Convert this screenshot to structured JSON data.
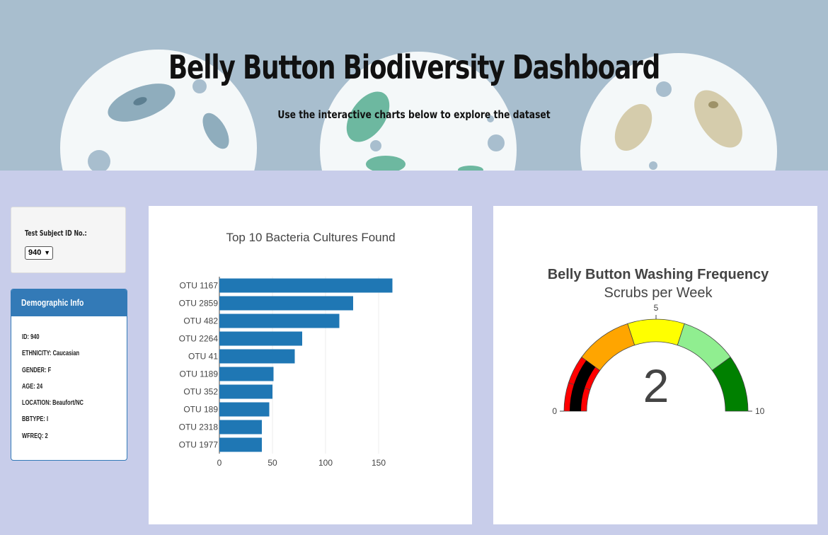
{
  "header": {
    "title": "Belly Button Biodiversity Dashboard",
    "subtitle": "Use the interactive charts below to explore the dataset"
  },
  "selector": {
    "label": "Test Subject ID No.:",
    "selected": "940"
  },
  "demographics": {
    "heading": "Demographic Info",
    "items": [
      "ID: 940",
      "ETHNICITY: Caucasian",
      "GENDER: F",
      "AGE: 24",
      "LOCATION: Beaufort/NC",
      "BBTYPE: I",
      "WFREQ: 2"
    ]
  },
  "chart_data": [
    {
      "type": "bar",
      "orientation": "horizontal",
      "title": "Top 10 Bacteria Cultures Found",
      "categories": [
        "OTU 1167",
        "OTU 2859",
        "OTU 482",
        "OTU 2264",
        "OTU 41",
        "OTU 1189",
        "OTU 352",
        "OTU 189",
        "OTU 2318",
        "OTU 1977"
      ],
      "values": [
        163,
        126,
        113,
        78,
        71,
        51,
        50,
        47,
        40,
        40
      ],
      "xlim": [
        0,
        170
      ],
      "xticks": [
        0,
        50,
        100,
        150
      ],
      "bar_color": "#1f77b4",
      "grid": true
    },
    {
      "type": "gauge",
      "title": "Belly Button Washing Frequency",
      "subtitle": "Scrubs per Week",
      "value": 2,
      "range": [
        0,
        10
      ],
      "ticks": [
        0,
        5,
        10
      ],
      "steps": [
        {
          "range": [
            0,
            1
          ],
          "color": "#ff0000"
        },
        {
          "range": [
            1,
            2
          ],
          "color": "#ff0000"
        },
        {
          "range": [
            2,
            4
          ],
          "color": "#ffa500"
        },
        {
          "range": [
            4,
            6
          ],
          "color": "#ffff00"
        },
        {
          "range": [
            6,
            8
          ],
          "color": "#90ee90"
        },
        {
          "range": [
            8,
            10
          ],
          "color": "#008000"
        }
      ],
      "bar_color": "#000000"
    }
  ]
}
